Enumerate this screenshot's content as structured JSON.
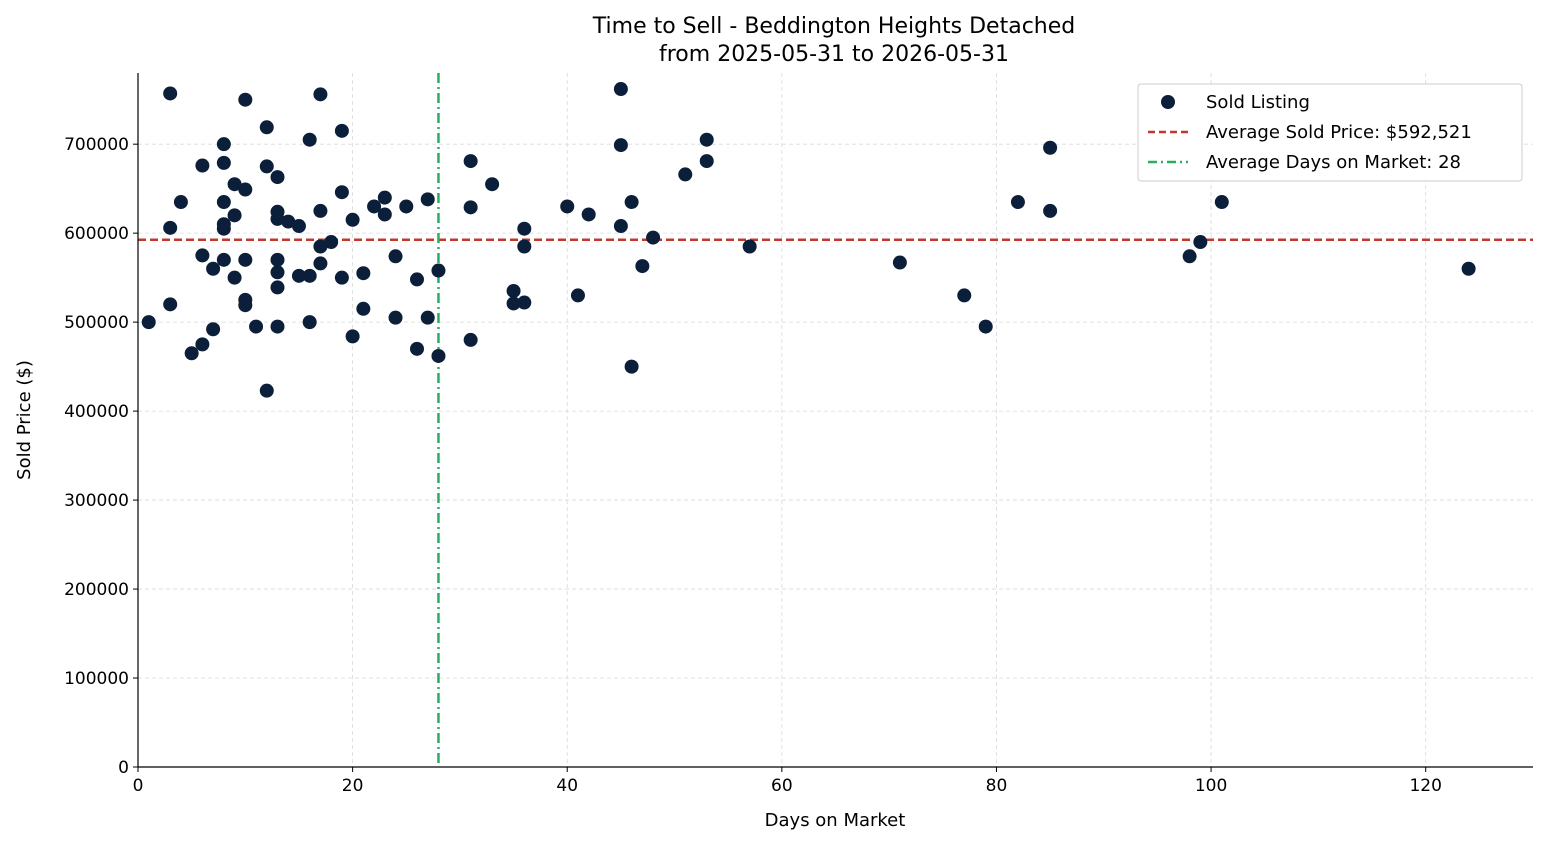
{
  "chart_data": {
    "type": "scatter",
    "title": "Time to Sell - Beddington Heights Detached",
    "subtitle": "from 2025-05-31 to 2026-05-31",
    "xlabel": "Days on Market",
    "ylabel": "Sold Price ($)",
    "xlim": [
      0,
      130
    ],
    "ylim": [
      0,
      780000
    ],
    "xticks": [
      0,
      20,
      40,
      60,
      80,
      100,
      120
    ],
    "yticks": [
      0,
      100000,
      200000,
      300000,
      400000,
      500000,
      600000,
      700000
    ],
    "xtick_labels": [
      "0",
      "20",
      "40",
      "60",
      "80",
      "100",
      "120"
    ],
    "ytick_labels": [
      "0",
      "100000",
      "200000",
      "300000",
      "400000",
      "500000",
      "600000",
      "700000"
    ],
    "grid": true,
    "legend_position": "top-right",
    "colors": {
      "points": "#0c1f3a",
      "avg_price": "#c0392b",
      "avg_days": "#27ae60",
      "grid": "#d9d9d9"
    },
    "series": [
      {
        "name": "Sold Listing",
        "points": [
          [
            1,
            500000
          ],
          [
            3,
            757000
          ],
          [
            3,
            606000
          ],
          [
            3,
            520000
          ],
          [
            4,
            635000
          ],
          [
            5,
            465000
          ],
          [
            6,
            676000
          ],
          [
            6,
            575000
          ],
          [
            6,
            475000
          ],
          [
            7,
            560000
          ],
          [
            7,
            492000
          ],
          [
            8,
            700000
          ],
          [
            8,
            679000
          ],
          [
            8,
            635000
          ],
          [
            8,
            610000
          ],
          [
            8,
            605000
          ],
          [
            8,
            570000
          ],
          [
            9,
            655000
          ],
          [
            9,
            620000
          ],
          [
            9,
            550000
          ],
          [
            10,
            750000
          ],
          [
            10,
            649000
          ],
          [
            10,
            570000
          ],
          [
            10,
            525000
          ],
          [
            10,
            519000
          ],
          [
            11,
            495000
          ],
          [
            12,
            719000
          ],
          [
            12,
            675000
          ],
          [
            12,
            423000
          ],
          [
            13,
            663000
          ],
          [
            13,
            624000
          ],
          [
            13,
            616000
          ],
          [
            13,
            570000
          ],
          [
            13,
            556000
          ],
          [
            13,
            539000
          ],
          [
            13,
            495000
          ],
          [
            14,
            613000
          ],
          [
            15,
            608000
          ],
          [
            15,
            552000
          ],
          [
            16,
            705000
          ],
          [
            16,
            552000
          ],
          [
            16,
            500000
          ],
          [
            17,
            756000
          ],
          [
            17,
            625000
          ],
          [
            17,
            585000
          ],
          [
            17,
            566000
          ],
          [
            18,
            590000
          ],
          [
            19,
            715000
          ],
          [
            19,
            646000
          ],
          [
            19,
            550000
          ],
          [
            20,
            615000
          ],
          [
            20,
            484000
          ],
          [
            21,
            555000
          ],
          [
            21,
            515000
          ],
          [
            22,
            630000
          ],
          [
            23,
            640000
          ],
          [
            23,
            621000
          ],
          [
            24,
            574000
          ],
          [
            24,
            505000
          ],
          [
            25,
            630000
          ],
          [
            26,
            548000
          ],
          [
            26,
            470000
          ],
          [
            27,
            638000
          ],
          [
            27,
            505000
          ],
          [
            28,
            558000
          ],
          [
            28,
            462000
          ],
          [
            31,
            681000
          ],
          [
            31,
            629000
          ],
          [
            31,
            480000
          ],
          [
            33,
            655000
          ],
          [
            35,
            535000
          ],
          [
            35,
            521000
          ],
          [
            36,
            605000
          ],
          [
            36,
            585000
          ],
          [
            36,
            522000
          ],
          [
            40,
            630000
          ],
          [
            41,
            530000
          ],
          [
            42,
            621000
          ],
          [
            45,
            762000
          ],
          [
            45,
            699000
          ],
          [
            45,
            608000
          ],
          [
            46,
            635000
          ],
          [
            46,
            450000
          ],
          [
            47,
            563000
          ],
          [
            48,
            595000
          ],
          [
            51,
            666000
          ],
          [
            53,
            705000
          ],
          [
            53,
            681000
          ],
          [
            57,
            585000
          ],
          [
            71,
            567000
          ],
          [
            77,
            530000
          ],
          [
            79,
            495000
          ],
          [
            82,
            635000
          ],
          [
            85,
            696000
          ],
          [
            85,
            625000
          ],
          [
            98,
            574000
          ],
          [
            99,
            590000
          ],
          [
            101,
            635000
          ],
          [
            124,
            560000
          ]
        ]
      },
      {
        "name": "Average Sold Price: $592,521",
        "type": "hline",
        "value": 592521
      },
      {
        "name": "Average Days on Market: 28",
        "type": "vline",
        "value": 28
      }
    ]
  }
}
